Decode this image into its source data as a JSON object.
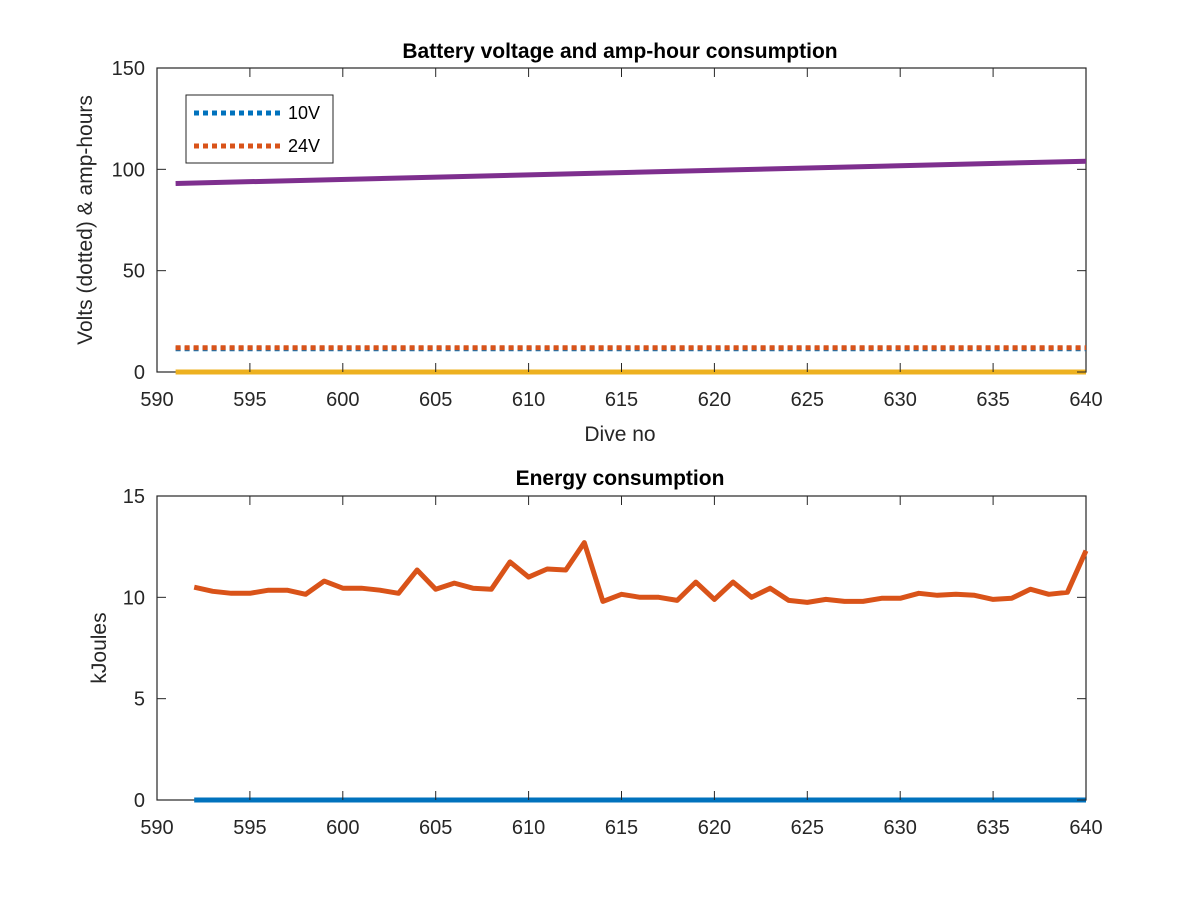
{
  "chart_data": [
    {
      "type": "line",
      "title": "Battery voltage and amp-hour consumption",
      "xlabel": "Dive no",
      "ylabel": "Volts (dotted) & amp-hours",
      "xlim": [
        590,
        640
      ],
      "ylim": [
        0,
        150
      ],
      "xticks": [
        "590",
        "595",
        "600",
        "605",
        "610",
        "615",
        "620",
        "625",
        "630",
        "635",
        "640"
      ],
      "yticks": [
        "0",
        "50",
        "100",
        "150"
      ],
      "grid": false,
      "legend": {
        "placement": "top-left",
        "entries": [
          "10V",
          "24V"
        ]
      },
      "series": [
        {
          "name": "10V",
          "color": "#0072BD",
          "style": "dotted",
          "x": [
            591,
            640
          ],
          "y": [
            11.5,
            11.5
          ]
        },
        {
          "name": "24V",
          "color": "#D95319",
          "style": "dotted",
          "x": [
            591,
            640
          ],
          "y": [
            12,
            12
          ]
        },
        {
          "color": "#7E2F8E",
          "style": "solid",
          "x": [
            591,
            640
          ],
          "y": [
            93,
            104
          ]
        },
        {
          "color": "#EDB120",
          "style": "solid",
          "x": [
            591,
            640
          ],
          "y": [
            0,
            0
          ]
        }
      ]
    },
    {
      "type": "line",
      "title": "Energy consumption",
      "xlabel": "",
      "ylabel": "kJoules",
      "xlim": [
        590,
        640
      ],
      "ylim": [
        0,
        15
      ],
      "xticks": [
        "590",
        "595",
        "600",
        "605",
        "610",
        "615",
        "620",
        "625",
        "630",
        "635",
        "640"
      ],
      "yticks": [
        "0",
        "5",
        "10",
        "15"
      ],
      "grid": false,
      "series": [
        {
          "color": "#D95319",
          "style": "solid",
          "x": [
            592,
            593,
            594,
            595,
            596,
            597,
            598,
            599,
            600,
            601,
            602,
            603,
            604,
            605,
            606,
            607,
            608,
            609,
            610,
            611,
            612,
            613,
            614,
            615,
            616,
            617,
            618,
            619,
            620,
            621,
            622,
            623,
            624,
            625,
            626,
            627,
            628,
            629,
            630,
            631,
            632,
            633,
            634,
            635,
            636,
            637,
            638,
            639,
            640
          ],
          "y": [
            10.5,
            10.3,
            10.2,
            10.2,
            10.35,
            10.35,
            10.15,
            10.8,
            10.45,
            10.45,
            10.35,
            10.2,
            11.35,
            10.4,
            10.7,
            10.45,
            10.4,
            11.75,
            11.0,
            11.4,
            11.35,
            12.7,
            9.8,
            10.15,
            10.0,
            10.0,
            9.85,
            10.75,
            9.9,
            10.75,
            10.0,
            10.45,
            9.85,
            9.75,
            9.9,
            9.8,
            9.8,
            9.95,
            9.95,
            10.2,
            10.1,
            10.15,
            10.1,
            9.9,
            9.95,
            10.4,
            10.15,
            10.25,
            12.3
          ]
        },
        {
          "color": "#0072BD",
          "style": "solid",
          "x": [
            592,
            640
          ],
          "y": [
            0,
            0
          ]
        }
      ]
    }
  ]
}
